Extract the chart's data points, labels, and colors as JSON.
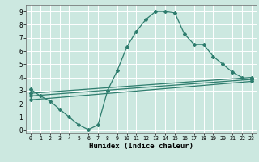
{
  "xlabel": "Humidex (Indice chaleur)",
  "xlim": [
    -0.5,
    23.5
  ],
  "ylim": [
    -0.2,
    9.5
  ],
  "xticks": [
    0,
    1,
    2,
    3,
    4,
    5,
    6,
    7,
    8,
    9,
    10,
    11,
    12,
    13,
    14,
    15,
    16,
    17,
    18,
    19,
    20,
    21,
    22,
    23
  ],
  "yticks": [
    0,
    1,
    2,
    3,
    4,
    5,
    6,
    7,
    8,
    9
  ],
  "bg_color": "#cce8e0",
  "line_color": "#2e7d6e",
  "grid_color": "#ffffff",
  "lines": [
    {
      "x": [
        0,
        1,
        2,
        3,
        4,
        5,
        6,
        7,
        8,
        9,
        10,
        11,
        12,
        13,
        14,
        15,
        16,
        17,
        18,
        19,
        20,
        21,
        22
      ],
      "y": [
        3.1,
        2.6,
        2.2,
        1.6,
        1.0,
        0.4,
        0.05,
        0.4,
        3.0,
        4.5,
        6.3,
        7.5,
        8.4,
        9.0,
        9.0,
        8.9,
        7.3,
        6.5,
        6.5,
        5.6,
        5.0,
        4.4,
        4.0
      ]
    },
    {
      "x": [
        0,
        23
      ],
      "y": [
        2.8,
        4.0
      ]
    },
    {
      "x": [
        0,
        23
      ],
      "y": [
        2.6,
        3.85
      ]
    },
    {
      "x": [
        0,
        23
      ],
      "y": [
        2.3,
        3.7
      ]
    }
  ]
}
